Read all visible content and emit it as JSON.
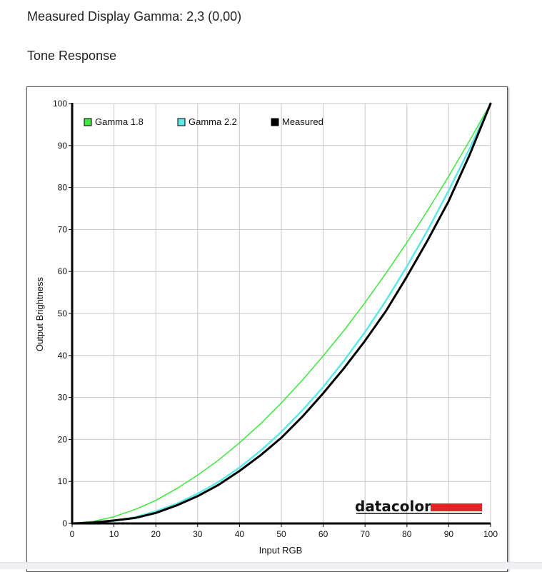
{
  "header": {
    "gamma_line": "Measured Display Gamma: 2,3 (0,00)",
    "section_title": "Tone Response"
  },
  "colors": {
    "gamma18": "#3ee63e",
    "gamma22": "#5ee8e8",
    "measured": "#000000",
    "grid": "#c8c8c8",
    "brand_bar": "#e02426"
  },
  "brand": {
    "text": "datacolor"
  },
  "chart_data": {
    "type": "line",
    "xlabel": "Input RGB",
    "ylabel": "Output Brightness",
    "xlim": [
      0,
      100
    ],
    "ylim": [
      0,
      100
    ],
    "xticks": [
      0,
      10,
      20,
      30,
      40,
      50,
      60,
      70,
      80,
      90,
      100
    ],
    "yticks": [
      0,
      10,
      20,
      30,
      40,
      50,
      60,
      70,
      80,
      90,
      100
    ],
    "grid": true,
    "legend_position": "top-left",
    "series": [
      {
        "name": "Gamma 1.8",
        "x": [
          0,
          5,
          10,
          15,
          20,
          25,
          30,
          35,
          40,
          45,
          50,
          55,
          60,
          65,
          70,
          75,
          80,
          85,
          90,
          95,
          100
        ],
        "y": [
          0,
          0.5,
          1.6,
          3.3,
          5.5,
          8.3,
          11.5,
          15.1,
          19.2,
          23.7,
          28.7,
          34.1,
          39.9,
          46.0,
          52.6,
          59.6,
          66.9,
          74.6,
          82.7,
          91.2,
          100
        ]
      },
      {
        "name": "Gamma 2.2",
        "x": [
          0,
          5,
          10,
          15,
          20,
          25,
          30,
          35,
          40,
          45,
          50,
          55,
          60,
          65,
          70,
          75,
          80,
          85,
          90,
          95,
          100
        ],
        "y": [
          0,
          0.1,
          0.6,
          1.5,
          2.9,
          4.7,
          7.1,
          9.9,
          13.3,
          17.3,
          21.8,
          26.9,
          32.5,
          38.8,
          45.6,
          53.1,
          61.2,
          69.9,
          79.3,
          89.3,
          100
        ]
      },
      {
        "name": "Measured",
        "x": [
          0,
          5,
          10,
          15,
          20,
          25,
          30,
          35,
          40,
          45,
          50,
          55,
          60,
          65,
          70,
          75,
          80,
          85,
          90,
          95,
          100
        ],
        "y": [
          0,
          0.2,
          0.7,
          1.3,
          2.5,
          4.3,
          6.5,
          9.2,
          12.5,
          16.2,
          20.4,
          25.4,
          31.0,
          37.0,
          43.5,
          50.6,
          58.8,
          67.5,
          76.8,
          87.8,
          100
        ]
      }
    ]
  }
}
